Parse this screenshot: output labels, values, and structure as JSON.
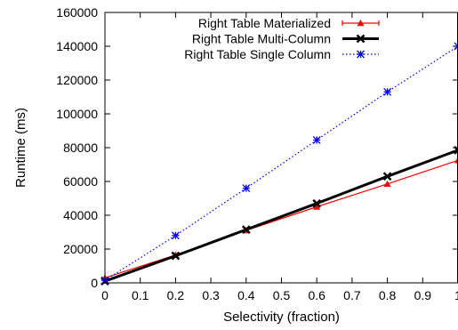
{
  "chart_data": {
    "type": "line",
    "xlabel": "Selectivity (fraction)",
    "ylabel": "Runtime (ms)",
    "xlim": [
      0,
      1
    ],
    "ylim": [
      0,
      160000
    ],
    "x_ticks": [
      0,
      0.1,
      0.2,
      0.3,
      0.4,
      0.5,
      0.6,
      0.7,
      0.8,
      0.9,
      1
    ],
    "x_tick_labels": [
      "0",
      "0.1",
      "0.2",
      "0.3",
      "0.4",
      "0.5",
      "0.6",
      "0.7",
      "0.8",
      "0.9",
      "1"
    ],
    "y_ticks": [
      0,
      20000,
      40000,
      60000,
      80000,
      100000,
      120000,
      140000,
      160000
    ],
    "y_tick_labels": [
      "0",
      "20000",
      "40000",
      "60000",
      "80000",
      "100000",
      "120000",
      "140000",
      "160000"
    ],
    "grid": false,
    "legend_position": "top-right",
    "series": [
      {
        "name": "Right Table Materialized",
        "color": "#ff0000",
        "marker": "triangle",
        "line_style": "solid",
        "x": [
          0,
          0.2,
          0.4,
          0.6,
          0.8,
          1.0
        ],
        "y": [
          3000,
          16500,
          31000,
          45000,
          58500,
          72500
        ]
      },
      {
        "name": "Right Table Multi-Column",
        "color": "#000000",
        "marker": "x",
        "line_style": "solid-thick",
        "x": [
          0,
          0.2,
          0.4,
          0.6,
          0.8,
          1.0
        ],
        "y": [
          1000,
          16000,
          31500,
          47000,
          63000,
          78500
        ]
      },
      {
        "name": "Right Table Single Column",
        "color": "#0000ff",
        "marker": "star",
        "line_style": "dotted",
        "x": [
          0,
          0.2,
          0.4,
          0.6,
          0.8,
          1.0
        ],
        "y": [
          1500,
          28000,
          56000,
          84500,
          113000,
          140000
        ]
      }
    ]
  }
}
